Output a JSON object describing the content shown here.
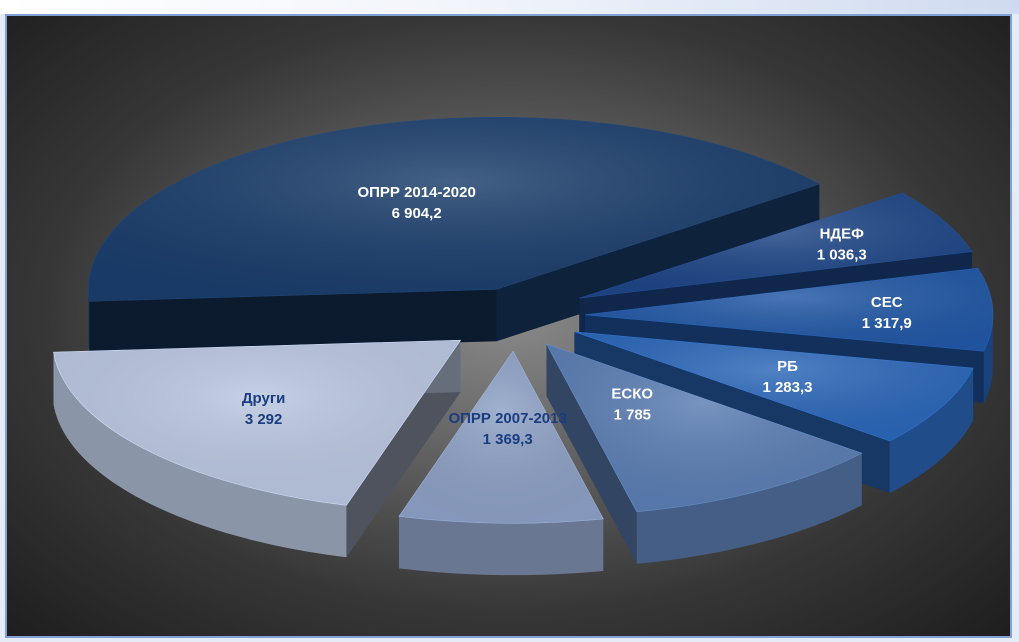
{
  "heading": "",
  "chart_data": {
    "type": "pie",
    "style": "3d-exploded",
    "slices": [
      {
        "label": "ОПРР 2014-2020",
        "value_text": "6 904,2",
        "value": 6904.2,
        "color": "#1a3d6b",
        "label_color": "#ffffff"
      },
      {
        "label": "НДЕФ",
        "value_text": "1 036,3",
        "value": 1036.3,
        "color": "#1d4586",
        "label_color": "#ffffff"
      },
      {
        "label": "СЕС",
        "value_text": "1 317,9",
        "value": 1317.9,
        "color": "#2157a5",
        "label_color": "#ffffff"
      },
      {
        "label": "РБ",
        "value_text": "1 283,3",
        "value": 1283.3,
        "color": "#2a66b8",
        "label_color": "#ffffff"
      },
      {
        "label": "ЕСКО",
        "value_text": "1 785",
        "value": 1785,
        "color": "#5a7db3",
        "label_color": "#ffffff"
      },
      {
        "label": "ОПРР 2007-2013",
        "value_text": "1 369,3",
        "value": 1369.3,
        "color": "#8c9fc4",
        "label_color": "#1a3d80"
      },
      {
        "label": "Други",
        "value_text": "3 292",
        "value": 3292,
        "color": "#b9c6e0",
        "label_color": "#1a3d80"
      }
    ]
  }
}
